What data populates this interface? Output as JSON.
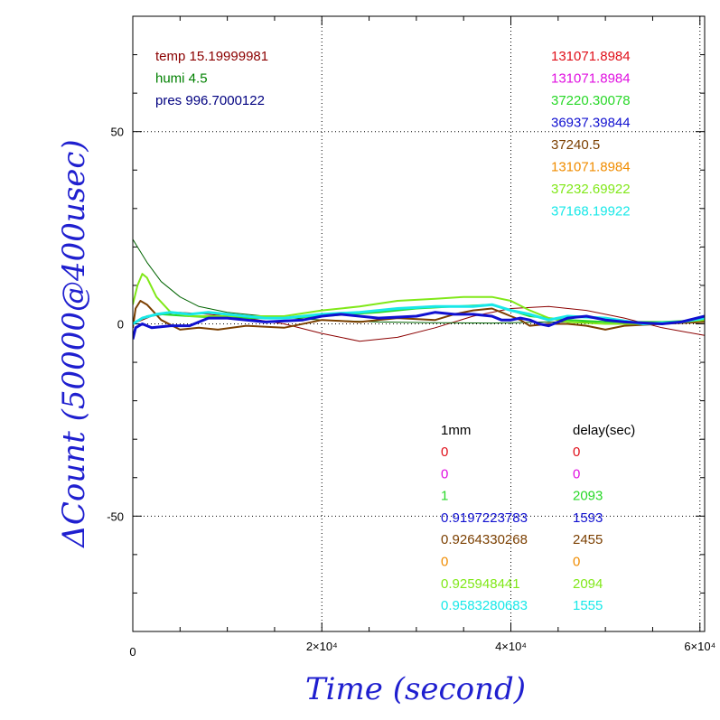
{
  "chart_data": {
    "type": "line",
    "xlabel": "Time (second)",
    "ylabel": "ΔCount (50000@400usec)",
    "xlim": [
      0,
      60500
    ],
    "ylim": [
      -80,
      80
    ],
    "x_ticks": [
      {
        "value": 0,
        "label": "0"
      },
      {
        "value": 20000,
        "label": "2×10⁴"
      },
      {
        "value": 40000,
        "label": "4×10⁴"
      },
      {
        "value": 60000,
        "label": "6×10⁴"
      }
    ],
    "y_ticks": [
      {
        "value": -50,
        "label": "-50"
      },
      {
        "value": 0,
        "label": "0"
      },
      {
        "value": 50,
        "label": "50"
      }
    ],
    "grid": true,
    "conditions": [
      {
        "text": "temp 15.19999981",
        "color": "#8b0000"
      },
      {
        "text": "humi 4.5",
        "color": "#008000"
      },
      {
        "text": "pres 996.7000122",
        "color": "#000080"
      }
    ],
    "legend_values": [
      {
        "text": "131071.8984",
        "color": "#e0101a"
      },
      {
        "text": "131071.8984",
        "color": "#e010e0"
      },
      {
        "text": "37220.30078",
        "color": "#28d828"
      },
      {
        "text": "36937.39844",
        "color": "#1010d0"
      },
      {
        "text": "37240.5",
        "color": "#7b3f00"
      },
      {
        "text": "131071.8984",
        "color": "#f08c00"
      },
      {
        "text": "37232.69922",
        "color": "#80e818"
      },
      {
        "text": "37168.19922",
        "color": "#18e8e8"
      }
    ],
    "table_headers": {
      "col1": "1mm",
      "col2": "delay(sec)",
      "color": "#000000"
    },
    "table_rows": [
      {
        "c1": "0",
        "c2": "0",
        "color": "#e0101a"
      },
      {
        "c1": "0",
        "c2": "0",
        "color": "#e010e0"
      },
      {
        "c1": "1",
        "c2": "2093",
        "color": "#28d828"
      },
      {
        "c1": "0.9197223783",
        "c2": "1593",
        "color": "#1010d0"
      },
      {
        "c1": "0.9264330268",
        "c2": "2455",
        "color": "#7b3f00"
      },
      {
        "c1": "0",
        "c2": "0",
        "color": "#f08c00"
      },
      {
        "c1": "0.925948441",
        "c2": "2094",
        "color": "#80e818"
      },
      {
        "c1": "0.9583280683",
        "c2": "1555",
        "color": "#18e8e8"
      }
    ],
    "series": [
      {
        "color": "#8b0000",
        "width": 1,
        "x": [
          0,
          2000,
          5000,
          8000,
          12000,
          16000,
          20000,
          24000,
          28000,
          32000,
          36000,
          40000,
          44000,
          48000,
          52000,
          56000,
          60500
        ],
        "y": [
          0,
          2,
          3,
          2.5,
          1.5,
          0,
          -2.5,
          -4.5,
          -3.5,
          -1,
          2,
          4,
          4.5,
          3.5,
          1.5,
          -1,
          -3
        ]
      },
      {
        "color": "#006400",
        "width": 1,
        "x": [
          0,
          500,
          1500,
          3000,
          5000,
          7000,
          10000,
          14000,
          20000,
          26000,
          32000,
          38000,
          44000,
          50000,
          56000,
          60500
        ],
        "y": [
          22,
          20,
          16,
          11,
          7,
          4.5,
          3,
          2,
          1,
          0.5,
          0.3,
          0.2,
          0.5,
          0.5,
          0.5,
          1
        ]
      },
      {
        "color": "#28d828",
        "width": 2,
        "x": [
          0,
          1500,
          3000,
          6000,
          10000,
          16000,
          20000,
          26000,
          30000,
          34000,
          38000,
          40000,
          42000,
          46000,
          50000,
          56000,
          60500
        ],
        "y": [
          0,
          2,
          2.5,
          2,
          1.5,
          1.5,
          2,
          3,
          4,
          4.5,
          5,
          3.5,
          2,
          1,
          0.5,
          0.5,
          1
        ]
      },
      {
        "color": "#7b3f00",
        "width": 2,
        "x": [
          0,
          300,
          800,
          1500,
          3000,
          5000,
          7000,
          9000,
          12000,
          16000,
          20000,
          24000,
          28000,
          32000,
          34000,
          36000,
          38000,
          39000,
          40000,
          41000,
          42000,
          44000,
          46000,
          48000,
          50000,
          52000,
          56000,
          60500
        ],
        "y": [
          -1,
          4,
          6,
          5,
          1,
          -1.5,
          -1,
          -1.5,
          -0.5,
          -1,
          1,
          0.5,
          1.5,
          1,
          2.5,
          3.5,
          4,
          3,
          2,
          1,
          -0.5,
          0,
          0,
          -0.5,
          -1.5,
          -0.5,
          0,
          0.5
        ]
      },
      {
        "color": "#80e818",
        "width": 2,
        "x": [
          0,
          500,
          1000,
          1500,
          2500,
          4000,
          6000,
          9000,
          12000,
          16000,
          20000,
          24000,
          28000,
          32000,
          35000,
          38000,
          40000,
          42000,
          44000,
          46000,
          50000,
          54000,
          58000,
          60500
        ],
        "y": [
          5,
          10,
          13,
          12,
          7,
          3,
          2,
          2,
          2,
          2,
          3.5,
          4.5,
          6,
          6.5,
          7,
          7,
          6,
          3.5,
          1.5,
          0.5,
          0,
          0,
          0.5,
          1
        ]
      },
      {
        "color": "#18e8e8",
        "width": 3,
        "x": [
          0,
          1000,
          2500,
          4000,
          6000,
          8000,
          10000,
          12000,
          14000,
          16000,
          20000,
          24000,
          28000,
          32000,
          36000,
          38000,
          40000,
          42000,
          44000,
          46000,
          50000,
          54000,
          58000,
          60500
        ],
        "y": [
          0,
          1.5,
          2.5,
          3,
          2.5,
          3,
          2.5,
          2,
          1.5,
          1.5,
          2.5,
          3,
          4,
          4.5,
          4.5,
          5,
          3.5,
          2.5,
          1,
          2,
          1.5,
          0,
          0.5,
          1.5
        ]
      },
      {
        "color": "#1010d0",
        "width": 3,
        "x": [
          0,
          300,
          1000,
          2000,
          4000,
          6000,
          8000,
          10000,
          14000,
          18000,
          20000,
          22000,
          26000,
          30000,
          32000,
          34000,
          36000,
          38000,
          39000,
          40000,
          41000,
          42000,
          43000,
          44000,
          46000,
          48000,
          50000,
          52000,
          56000,
          58000,
          60500
        ],
        "y": [
          -4,
          -1,
          0,
          -1,
          -0.5,
          -0.5,
          1.5,
          1.5,
          0.5,
          1,
          2,
          2.5,
          1.5,
          2,
          3,
          2.5,
          2.5,
          2,
          1,
          1,
          1.5,
          1,
          0,
          -0.5,
          1.5,
          2,
          1,
          0.5,
          0,
          0.5,
          2
        ]
      }
    ]
  }
}
